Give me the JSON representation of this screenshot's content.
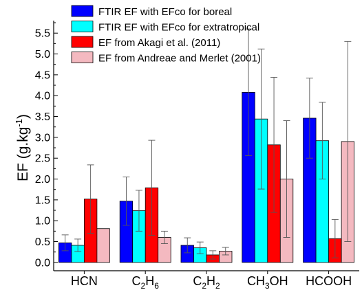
{
  "chart_data": {
    "type": "bar",
    "title": "",
    "xlabel": "",
    "ylabel": "EF (g.kg⁻¹)",
    "ylim": [
      -0.2,
      5.8
    ],
    "yticks": [
      "0.0",
      "0.5",
      "1.0",
      "1.5",
      "2.0",
      "2.5",
      "3.0",
      "3.5",
      "4.0",
      "4.5",
      "5.0",
      "5.5"
    ],
    "grid": false,
    "legend_position": "top",
    "categories": [
      "HCN",
      "C2H6",
      "C2H2",
      "CH3OH",
      "HCOOH"
    ],
    "category_labels": [
      {
        "base": "HCN"
      },
      {
        "base": "C",
        "sub1": "2",
        "mid": "H",
        "sub2": "6"
      },
      {
        "base": "C",
        "sub1": "2",
        "mid": "H",
        "sub2": "2"
      },
      {
        "base": "CH",
        "sub1": "3",
        "mid": "OH"
      },
      {
        "base": "HCOOH"
      }
    ],
    "series": [
      {
        "name": "FTIR EF with EFco for boreal",
        "color": "#0000ff",
        "values": [
          0.47,
          1.47,
          0.41,
          4.08,
          3.46
        ],
        "errors": [
          0.19,
          0.58,
          0.18,
          1.52,
          0.96
        ]
      },
      {
        "name": "FTIR EF with EFco for extratropical",
        "color": "#00ffff",
        "values": [
          0.41,
          1.24,
          0.35,
          3.44,
          2.92
        ],
        "errors": [
          0.15,
          0.49,
          0.14,
          1.68,
          0.92
        ]
      },
      {
        "name": "EF from Akagi et al. (2011)",
        "color": "#ff0000",
        "values": [
          1.52,
          1.79,
          0.18,
          2.82,
          0.57
        ],
        "errors": [
          0.82,
          1.14,
          0.1,
          1.62,
          0.46
        ]
      },
      {
        "name": "EF from Andreae and Merlet (2001)",
        "color": "#f4b9c0",
        "values": [
          0.81,
          0.6,
          0.27,
          2.0,
          2.9
        ],
        "errors": [
          0.0,
          0.15,
          0.09,
          1.4,
          2.4
        ]
      }
    ]
  }
}
